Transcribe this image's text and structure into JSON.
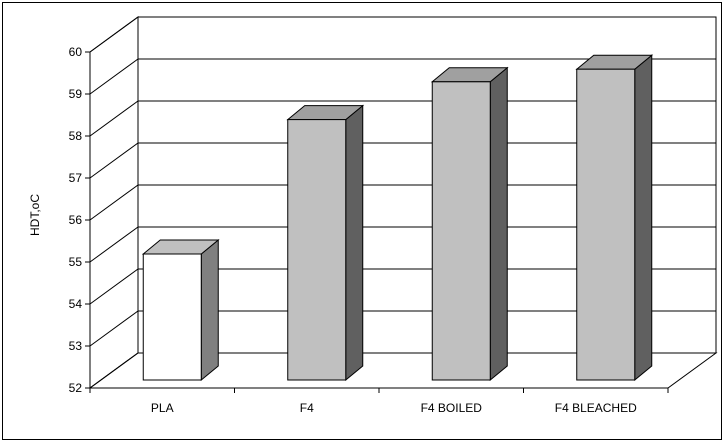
{
  "chart_data": {
    "type": "bar",
    "title": "",
    "xlabel": "",
    "ylabel": "HDT,oC",
    "ylim": [
      52,
      60
    ],
    "yticks": [
      "52",
      "53",
      "54",
      "55",
      "56",
      "57",
      "58",
      "59",
      "60"
    ],
    "categories": [
      "PLA",
      "F4",
      "F4 BOILED",
      "F4 BLEACHED"
    ],
    "values": [
      55.0,
      58.2,
      59.1,
      59.4
    ],
    "grid": true,
    "style": "3d-column",
    "colors": {
      "PLA": {
        "front": "#ffffff",
        "side": "#808080",
        "top": "#c0c0c0"
      },
      "default": {
        "front": "#c0c0c0",
        "side": "#606060",
        "top": "#a0a0a0"
      },
      "wall": "#ffffff",
      "grid": "#000000"
    }
  }
}
